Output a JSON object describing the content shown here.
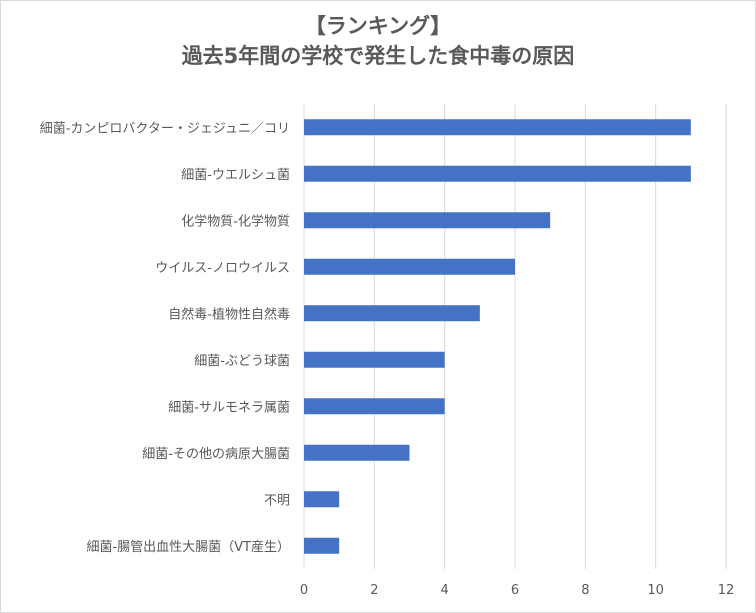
{
  "chart_data": {
    "type": "bar",
    "orientation": "horizontal",
    "title": "【ランキング】",
    "subtitle": "過去5年間の学校で発生した食中毒の原因",
    "xlabel": "",
    "ylabel": "",
    "categories": [
      "細菌-カンピロバクター・ジェジュニ／コリ",
      "細菌-ウエルシュ菌",
      "化学物質-化学物質",
      "ウイルス-ノロウイルス",
      "自然毒-植物性自然毒",
      "細菌-ぶどう球菌",
      "細菌-サルモネラ属菌",
      "細菌-その他の病原大腸菌",
      "不明",
      "細菌-腸管出血性大腸菌（VT産生）"
    ],
    "values": [
      11,
      11,
      7,
      6,
      5,
      4,
      4,
      3,
      1,
      1
    ],
    "xlim": [
      0,
      12
    ],
    "xticks": [
      0,
      2,
      4,
      6,
      8,
      10,
      12
    ],
    "grid": true,
    "legend": "none",
    "bar_color": "#4472c4",
    "grid_color": "#d9d9d9",
    "text_color": "#595959"
  }
}
